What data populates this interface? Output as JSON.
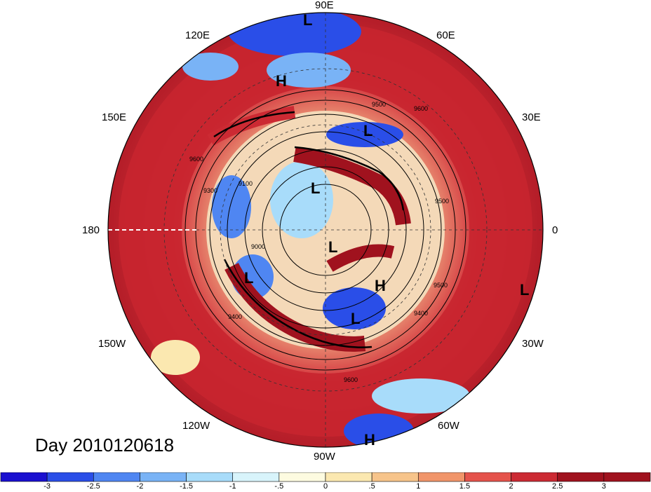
{
  "title": "Day 2010120618",
  "longitude_labels": {
    "lon_90E": "90E",
    "lon_60E": "60E",
    "lon_120E": "120E",
    "lon_30E": "30E",
    "lon_150E": "150E",
    "lon_180": "180",
    "lon_0": "0",
    "lon_150W": "150W",
    "lon_30W": "30W",
    "lon_120W": "120W",
    "lon_60W": "60W",
    "lon_90W": "90W"
  },
  "pressure_centers": [
    "L",
    "H",
    "L",
    "L",
    "L",
    "L",
    "H",
    "L",
    "L",
    "H"
  ],
  "contour_labels": [
    "9500",
    "9600",
    "9600",
    "9300",
    "9100",
    "9000",
    "9500",
    "9400",
    "9500",
    "9400",
    "9600"
  ],
  "colorbar": {
    "ticks": [
      "-3",
      "-2.5",
      "-2",
      "-1.5",
      "-1",
      "-.5",
      "0",
      ".5",
      "1",
      "1.5",
      "2",
      "2.5",
      "3"
    ],
    "colors": [
      "#1a10d0",
      "#2a4ee8",
      "#4f86f2",
      "#79b3f6",
      "#a8dcfa",
      "#d8f4fb",
      "#fdfbe0",
      "#fbe8b0",
      "#f7c48a",
      "#f1956a",
      "#e5534b",
      "#cc2a33",
      "#a0121e"
    ]
  }
}
